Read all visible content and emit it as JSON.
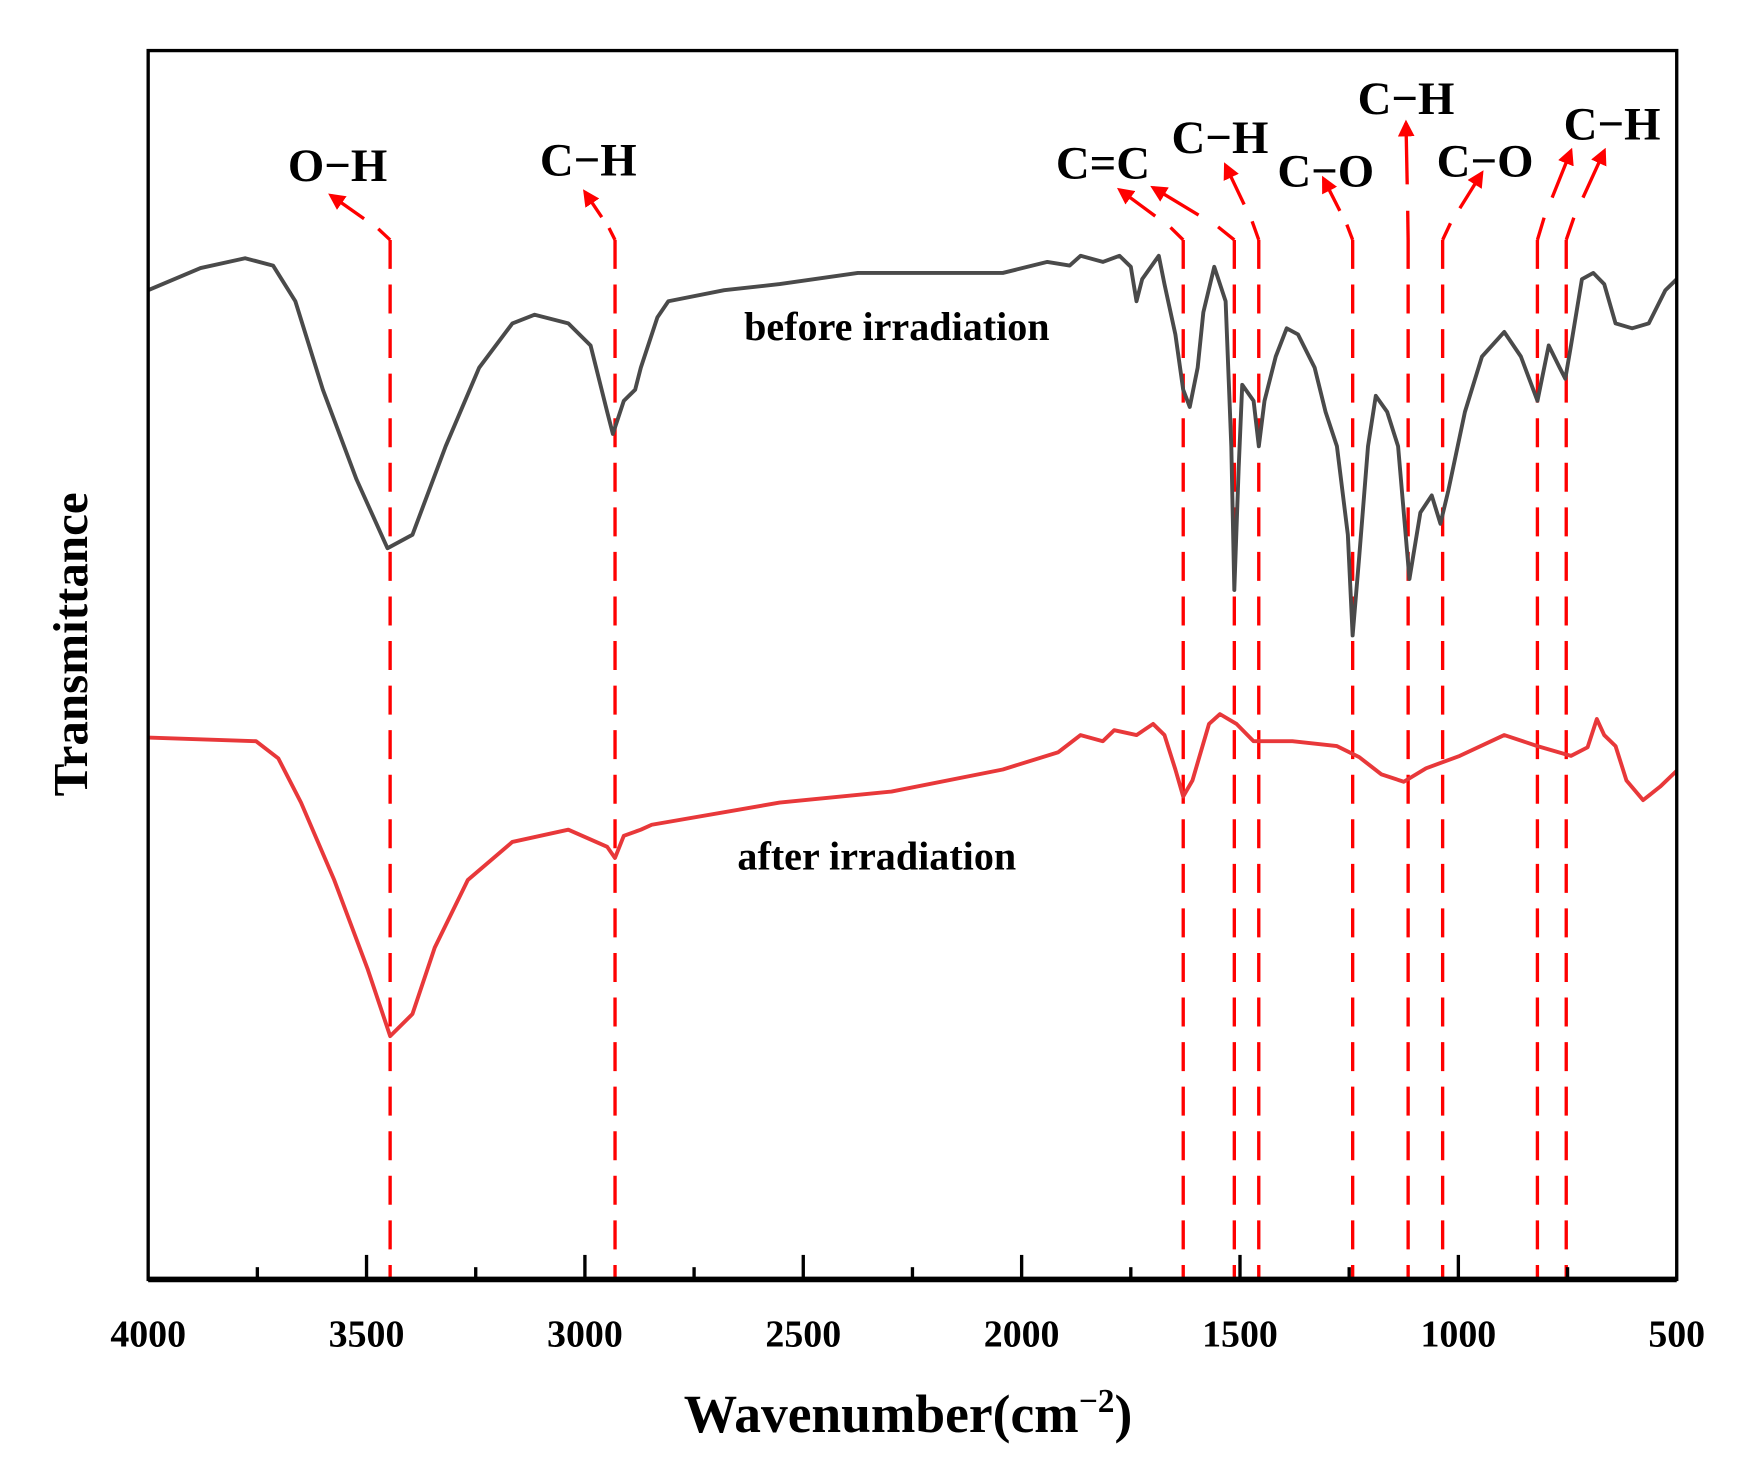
{
  "chart_data": {
    "type": "line",
    "title": "",
    "xlabel": "Wavenumber(cm",
    "xlabel_sup": "−2",
    "xlabel_close": ")",
    "ylabel": "Transmittance",
    "xlim": [
      4000,
      500
    ],
    "ylim": [
      0,
      100
    ],
    "xticks": [
      4000,
      3500,
      3000,
      2500,
      2000,
      1500,
      1000,
      500
    ],
    "xtick_labels": [
      "4000",
      "3500",
      "3000",
      "2500",
      "2000",
      "1500",
      "1000",
      "500"
    ],
    "minor_xticks": [
      3750,
      3250,
      2750,
      2250,
      1750,
      1250,
      750
    ],
    "grid": false,
    "series": [
      {
        "name": "before irradiation",
        "color": "#4a4a4a",
        "x": [
          4000,
          3880,
          3778,
          3714,
          3663,
          3600,
          3523,
          3452,
          3395,
          3319,
          3242,
          3166,
          3115,
          3038,
          2987,
          2949,
          2936,
          2911,
          2885,
          2872,
          2834,
          2809,
          2681,
          2554,
          2375,
          2043,
          1941,
          1890,
          1865,
          1814,
          1776,
          1750,
          1737,
          1724,
          1686,
          1673,
          1648,
          1630,
          1615,
          1597,
          1584,
          1559,
          1533,
          1520,
          1513,
          1503,
          1495,
          1469,
          1457,
          1444,
          1418,
          1393,
          1367,
          1329,
          1304,
          1278,
          1253,
          1242,
          1227,
          1207,
          1189,
          1163,
          1138,
          1112,
          1087,
          1061,
          1041,
          1023,
          985,
          946,
          895,
          857,
          819,
          793,
          768,
          755,
          742,
          717,
          691,
          666,
          640,
          602,
          564,
          526,
          500
        ],
        "y": [
          80.5,
          82.3,
          83.1,
          82.5,
          79.6,
          72.4,
          65.1,
          59.5,
          60.6,
          67.8,
          74.2,
          77.8,
          78.5,
          77.8,
          76.0,
          70.6,
          68.8,
          71.5,
          72.4,
          74.2,
          78.3,
          79.6,
          80.5,
          81.0,
          81.9,
          81.9,
          82.8,
          82.5,
          83.3,
          82.8,
          83.3,
          82.4,
          79.6,
          81.4,
          83.3,
          81.0,
          76.9,
          72.4,
          71.0,
          74.2,
          78.7,
          82.4,
          79.6,
          67.8,
          56.1,
          66.0,
          72.8,
          71.5,
          67.8,
          71.5,
          75.1,
          77.4,
          76.9,
          74.2,
          70.6,
          67.8,
          60.6,
          52.4,
          58.8,
          67.8,
          71.9,
          70.6,
          67.8,
          57.0,
          62.4,
          63.8,
          61.5,
          64.2,
          70.6,
          75.1,
          77.1,
          75.1,
          71.5,
          76.0,
          74.2,
          73.3,
          76.0,
          81.4,
          81.9,
          81.0,
          77.8,
          77.4,
          77.8,
          80.5,
          81.4
        ]
      },
      {
        "name": "after irradiation",
        "color": "#e8383a",
        "x": [
          4000,
          3753,
          3702,
          3650,
          3574,
          3497,
          3446,
          3395,
          3344,
          3268,
          3166,
          3038,
          2949,
          2931,
          2911,
          2872,
          2847,
          2554,
          2298,
          2043,
          1916,
          1865,
          1814,
          1788,
          1737,
          1699,
          1673,
          1648,
          1630,
          1609,
          1571,
          1546,
          1508,
          1469,
          1380,
          1278,
          1227,
          1176,
          1125,
          1074,
          997,
          895,
          819,
          742,
          704,
          683,
          666,
          640,
          615,
          577,
          538,
          500
        ],
        "y": [
          44.1,
          43.8,
          42.4,
          38.8,
          32.5,
          25.2,
          19.8,
          21.6,
          27.0,
          32.5,
          35.6,
          36.6,
          35.2,
          34.3,
          36.1,
          36.6,
          37.0,
          38.8,
          39.7,
          41.5,
          42.9,
          44.3,
          43.8,
          44.7,
          44.3,
          45.2,
          44.3,
          41.5,
          39.3,
          40.6,
          45.2,
          46.0,
          45.2,
          43.8,
          43.8,
          43.4,
          42.5,
          41.1,
          40.5,
          41.6,
          42.6,
          44.3,
          43.4,
          42.6,
          43.3,
          45.6,
          44.3,
          43.4,
          40.6,
          39.0,
          40.1,
          41.4
        ]
      }
    ],
    "series_labels": [
      "before irradiation",
      "after irradiation"
    ],
    "reference_lines": {
      "color": "#ff0000",
      "wavenumbers": [
        3446,
        2931,
        1630,
        1513,
        1457,
        1242,
        1115,
        1036,
        819,
        753
      ]
    },
    "annotations": [
      {
        "text": "O−H",
        "lines": [
          0
        ]
      },
      {
        "text": "C−H",
        "lines": [
          1
        ]
      },
      {
        "text": "C=C",
        "lines": [
          2
        ]
      },
      {
        "text": "C−H",
        "lines": [
          3,
          4
        ]
      },
      {
        "text": "C−O",
        "lines": [
          5
        ]
      },
      {
        "text": "C−H",
        "lines": [
          6
        ]
      },
      {
        "text": "C−O",
        "lines": [
          7
        ]
      },
      {
        "text": "C−H",
        "lines": [
          8,
          9
        ]
      }
    ]
  }
}
